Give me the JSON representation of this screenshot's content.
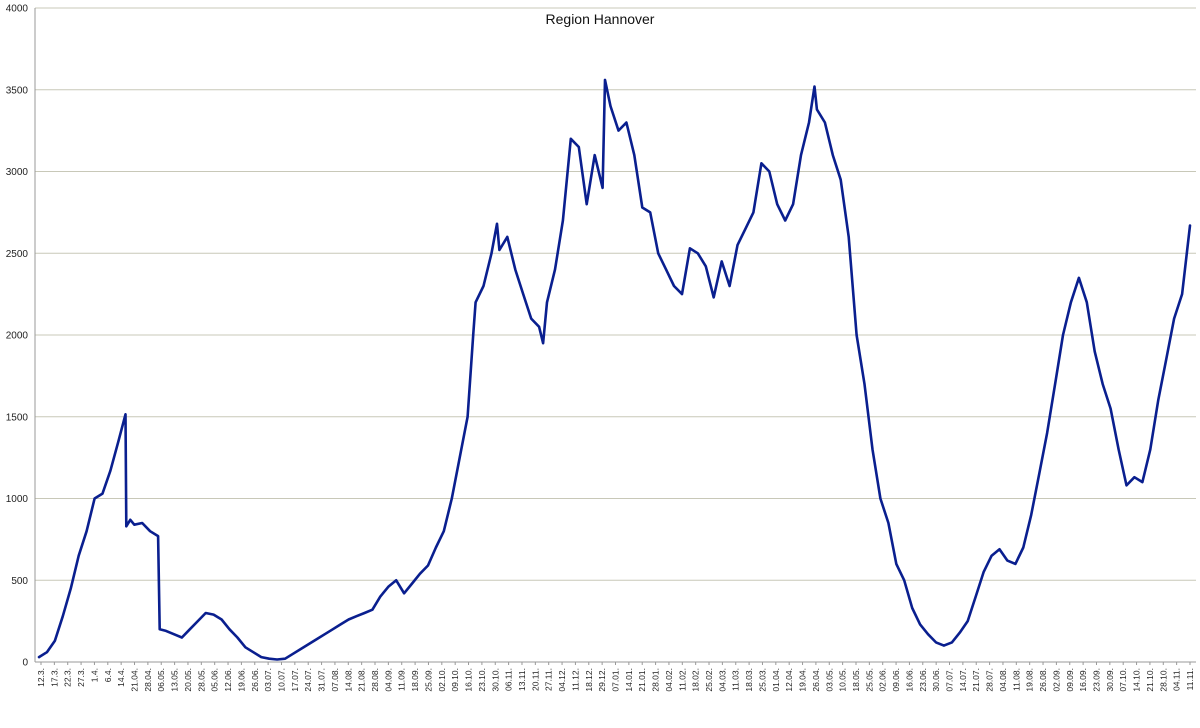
{
  "chart_data": {
    "type": "line",
    "title": "Region Hannover",
    "xlabel": "",
    "ylabel": "",
    "ylim": [
      0,
      4000
    ],
    "yticks": [
      0,
      500,
      1000,
      1500,
      2000,
      2500,
      3000,
      3500,
      4000
    ],
    "grid": true,
    "legend": "none",
    "colors": {
      "line": "#0a1f8f",
      "grid": "#c8c8b8",
      "axis": "#999999"
    },
    "x_ticks": [
      "12.3.",
      "17.3.",
      "22.3.",
      "27.3.",
      "1.4.",
      "6.4.",
      "14.4.",
      "21.04.",
      "28.04.",
      "06.05.",
      "13.05.",
      "20.05.",
      "28.05.",
      "05.06.",
      "12.06.",
      "19.06.",
      "26.06.",
      "03.07.",
      "10.07.",
      "17.07.",
      "24.07.",
      "31.07.",
      "07.08.",
      "14.08.",
      "21.08.",
      "28.08.",
      "04.09.",
      "11.09.",
      "18.09.",
      "25.09.",
      "02.10.",
      "09.10.",
      "16.10.",
      "23.10.",
      "30.10.",
      "06.11.",
      "13.11.",
      "20.11.",
      "27.11.",
      "04.12.",
      "11.12.",
      "18.12.",
      "29.12.",
      "07.01.",
      "14.01.",
      "21.01.",
      "28.01.",
      "04.02.",
      "11.02.",
      "18.02.",
      "25.02.",
      "04.03.",
      "11.03.",
      "18.03.",
      "25.03.",
      "01.04.",
      "12.04.",
      "19.04.",
      "26.04.",
      "03.05.",
      "10.05.",
      "18.05.",
      "25.05.",
      "02.06.",
      "09.06.",
      "16.06.",
      "23.06.",
      "30.06.",
      "07.07.",
      "14.07.",
      "21.07.",
      "28.07.",
      "04.08.",
      "11.08.",
      "19.08.",
      "26.08.",
      "02.09.",
      "09.09.",
      "16.09.",
      "23.09.",
      "30.09.",
      "07.10.",
      "14.10.",
      "21.10.",
      "28.10.",
      "04.11.",
      "11.11."
    ],
    "series": [
      {
        "values": [
          [
            0,
            30
          ],
          [
            1,
            60
          ],
          [
            2,
            130
          ],
          [
            3,
            280
          ],
          [
            4,
            450
          ],
          [
            5,
            650
          ],
          [
            6,
            800
          ],
          [
            7,
            1000
          ],
          [
            8,
            1030
          ],
          [
            9,
            1170
          ],
          [
            10,
            1350
          ],
          [
            10.9,
            1515
          ],
          [
            11,
            830
          ],
          [
            11.5,
            870
          ],
          [
            12,
            840
          ],
          [
            13,
            850
          ],
          [
            14,
            800
          ],
          [
            15,
            770
          ],
          [
            15.2,
            200
          ],
          [
            16,
            190
          ],
          [
            17,
            170
          ],
          [
            18,
            150
          ],
          [
            19,
            200
          ],
          [
            20,
            250
          ],
          [
            21,
            300
          ],
          [
            22,
            290
          ],
          [
            23,
            260
          ],
          [
            24,
            200
          ],
          [
            25,
            150
          ],
          [
            26,
            90
          ],
          [
            27,
            60
          ],
          [
            28,
            30
          ],
          [
            29,
            20
          ],
          [
            30,
            15
          ],
          [
            31,
            20
          ],
          [
            32,
            50
          ],
          [
            33,
            80
          ],
          [
            34,
            110
          ],
          [
            35,
            140
          ],
          [
            36,
            170
          ],
          [
            37,
            200
          ],
          [
            38,
            230
          ],
          [
            39,
            260
          ],
          [
            40,
            280
          ],
          [
            41,
            300
          ],
          [
            42,
            320
          ],
          [
            43,
            400
          ],
          [
            44,
            460
          ],
          [
            45,
            500
          ],
          [
            46,
            420
          ],
          [
            47,
            480
          ],
          [
            48,
            540
          ],
          [
            49,
            590
          ],
          [
            50,
            700
          ],
          [
            51,
            800
          ],
          [
            52,
            1000
          ],
          [
            53,
            1250
          ],
          [
            54,
            1500
          ],
          [
            54.7,
            2000
          ],
          [
            55,
            2200
          ],
          [
            56,
            2300
          ],
          [
            57,
            2500
          ],
          [
            57.7,
            2680
          ],
          [
            58,
            2520
          ],
          [
            59,
            2600
          ],
          [
            60,
            2400
          ],
          [
            61,
            2250
          ],
          [
            62,
            2100
          ],
          [
            63,
            2050
          ],
          [
            63.5,
            1950
          ],
          [
            64,
            2200
          ],
          [
            65,
            2400
          ],
          [
            66,
            2700
          ],
          [
            67,
            3200
          ],
          [
            68,
            3150
          ],
          [
            69,
            2800
          ],
          [
            70,
            3100
          ],
          [
            71,
            2900
          ],
          [
            71.3,
            3560
          ],
          [
            72,
            3400
          ],
          [
            73,
            3250
          ],
          [
            74,
            3300
          ],
          [
            75,
            3100
          ],
          [
            76,
            2780
          ],
          [
            77,
            2750
          ],
          [
            78,
            2500
          ],
          [
            79,
            2400
          ],
          [
            80,
            2300
          ],
          [
            81,
            2250
          ],
          [
            82,
            2530
          ],
          [
            83,
            2500
          ],
          [
            84,
            2420
          ],
          [
            85,
            2230
          ],
          [
            86,
            2450
          ],
          [
            87,
            2300
          ],
          [
            88,
            2550
          ],
          [
            89,
            2650
          ],
          [
            90,
            2750
          ],
          [
            91,
            3050
          ],
          [
            92,
            3000
          ],
          [
            93,
            2800
          ],
          [
            94,
            2700
          ],
          [
            95,
            2800
          ],
          [
            96,
            3100
          ],
          [
            97,
            3300
          ],
          [
            97.7,
            3520
          ],
          [
            98,
            3380
          ],
          [
            99,
            3300
          ],
          [
            100,
            3100
          ],
          [
            101,
            2950
          ],
          [
            102,
            2600
          ],
          [
            103,
            2000
          ],
          [
            104,
            1700
          ],
          [
            105,
            1300
          ],
          [
            106,
            1000
          ],
          [
            107,
            850
          ],
          [
            108,
            600
          ],
          [
            109,
            500
          ],
          [
            110,
            330
          ],
          [
            111,
            230
          ],
          [
            112,
            170
          ],
          [
            113,
            120
          ],
          [
            114,
            100
          ],
          [
            115,
            120
          ],
          [
            116,
            180
          ],
          [
            117,
            250
          ],
          [
            118,
            400
          ],
          [
            119,
            550
          ],
          [
            120,
            650
          ],
          [
            121,
            690
          ],
          [
            122,
            620
          ],
          [
            123,
            600
          ],
          [
            124,
            700
          ],
          [
            125,
            900
          ],
          [
            126,
            1150
          ],
          [
            127,
            1400
          ],
          [
            128,
            1700
          ],
          [
            129,
            2000
          ],
          [
            130,
            2200
          ],
          [
            131,
            2350
          ],
          [
            132,
            2200
          ],
          [
            133,
            1900
          ],
          [
            134,
            1700
          ],
          [
            135,
            1550
          ],
          [
            136,
            1300
          ],
          [
            137,
            1080
          ],
          [
            138,
            1130
          ],
          [
            139,
            1100
          ],
          [
            140,
            1300
          ],
          [
            141,
            1600
          ],
          [
            142,
            1850
          ],
          [
            143,
            2100
          ],
          [
            144,
            2250
          ],
          [
            145,
            2670
          ]
        ]
      }
    ]
  }
}
